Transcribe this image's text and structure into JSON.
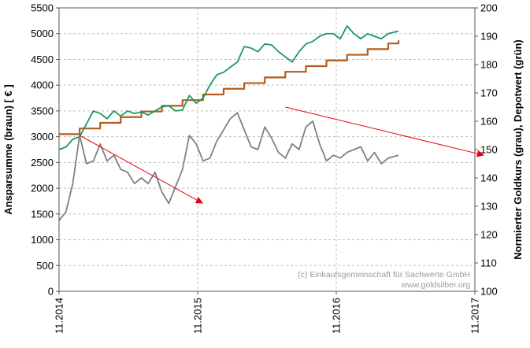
{
  "chart_data": {
    "type": "line",
    "x_ticks": [
      "11.2014",
      "11.2015",
      "11.2016",
      "11.2017"
    ],
    "xlim": [
      "2014-11",
      "2017-11"
    ],
    "y_left": {
      "label": "Ansparsumme (braun) [ € ]",
      "min": 0,
      "max": 5500,
      "ticks": [
        "0",
        "500",
        "1000",
        "1500",
        "2000",
        "2500",
        "3000",
        "3500",
        "4000",
        "4500",
        "5000",
        "5500"
      ]
    },
    "y_right": {
      "label": "Normierter Goldkurs (grau), Depotwert (grün)",
      "min": 100,
      "max": 200,
      "ticks": [
        "100",
        "110",
        "120",
        "130",
        "140",
        "150",
        "160",
        "170",
        "180",
        "190",
        "200"
      ]
    },
    "grid": true,
    "legend": "none",
    "series": [
      {
        "axis": "left",
        "color": "#b35c1e",
        "step": true,
        "values": [
          [
            0,
            3050
          ],
          [
            3,
            3160
          ],
          [
            6,
            3270
          ],
          [
            9,
            3380
          ],
          [
            12,
            3490
          ],
          [
            15,
            3600
          ],
          [
            18,
            3710
          ],
          [
            21,
            3820
          ],
          [
            24,
            3930
          ],
          [
            27,
            4040
          ],
          [
            30,
            4150
          ],
          [
            33,
            4260
          ],
          [
            36,
            4370
          ],
          [
            39,
            4480
          ],
          [
            42,
            4590
          ],
          [
            45,
            4700
          ],
          [
            48,
            4810
          ],
          [
            49.5,
            4870
          ]
        ]
      },
      {
        "axis": "left",
        "color": "#1a9b5e",
        "values": [
          [
            0,
            2750
          ],
          [
            1,
            2800
          ],
          [
            2,
            2950
          ],
          [
            3,
            3000
          ],
          [
            4,
            3250
          ],
          [
            5,
            3500
          ],
          [
            6,
            3450
          ],
          [
            7,
            3350
          ],
          [
            8,
            3500
          ],
          [
            9,
            3400
          ],
          [
            10,
            3500
          ],
          [
            11,
            3450
          ],
          [
            12,
            3480
          ],
          [
            13,
            3420
          ],
          [
            14,
            3500
          ],
          [
            15,
            3580
          ],
          [
            16,
            3600
          ],
          [
            17,
            3500
          ],
          [
            18,
            3520
          ],
          [
            19,
            3800
          ],
          [
            20,
            3650
          ],
          [
            21,
            3750
          ],
          [
            22,
            4000
          ],
          [
            23,
            4200
          ],
          [
            24,
            4250
          ],
          [
            25,
            4350
          ],
          [
            26,
            4450
          ],
          [
            27,
            4750
          ],
          [
            28,
            4720
          ],
          [
            29,
            4650
          ],
          [
            30,
            4800
          ],
          [
            31,
            4780
          ],
          [
            32,
            4650
          ],
          [
            33,
            4550
          ],
          [
            34,
            4450
          ],
          [
            35,
            4650
          ],
          [
            36,
            4800
          ],
          [
            37,
            4850
          ],
          [
            38,
            4950
          ],
          [
            39,
            5000
          ],
          [
            40,
            5000
          ],
          [
            41,
            4900
          ],
          [
            42,
            5150
          ],
          [
            43,
            5000
          ],
          [
            44,
            4900
          ],
          [
            45,
            5000
          ],
          [
            46,
            4950
          ],
          [
            47,
            4900
          ],
          [
            48,
            5000
          ],
          [
            49.5,
            5050
          ]
        ]
      },
      {
        "axis": "right",
        "color": "#808080",
        "values": [
          [
            0,
            125
          ],
          [
            1,
            128
          ],
          [
            2,
            138
          ],
          [
            3,
            155
          ],
          [
            4,
            145
          ],
          [
            5,
            146
          ],
          [
            6,
            152
          ],
          [
            7,
            146
          ],
          [
            8,
            148
          ],
          [
            9,
            143
          ],
          [
            10,
            142
          ],
          [
            11,
            138
          ],
          [
            12,
            140
          ],
          [
            13,
            138
          ],
          [
            14,
            142
          ],
          [
            15,
            135
          ],
          [
            16,
            131
          ],
          [
            17,
            137
          ],
          [
            18,
            143
          ],
          [
            19,
            155
          ],
          [
            20,
            152
          ],
          [
            21,
            146
          ],
          [
            22,
            147
          ],
          [
            23,
            153
          ],
          [
            24,
            157
          ],
          [
            25,
            161
          ],
          [
            26,
            163
          ],
          [
            27,
            157
          ],
          [
            28,
            151
          ],
          [
            29,
            150
          ],
          [
            30,
            158
          ],
          [
            31,
            154
          ],
          [
            32,
            149
          ],
          [
            33,
            147
          ],
          [
            34,
            152
          ],
          [
            35,
            150
          ],
          [
            36,
            158
          ],
          [
            37,
            160
          ],
          [
            38,
            152
          ],
          [
            39,
            146
          ],
          [
            40,
            148
          ],
          [
            41,
            147
          ],
          [
            42,
            149
          ],
          [
            43,
            150
          ],
          [
            44,
            151
          ],
          [
            45,
            146
          ],
          [
            46,
            149
          ],
          [
            47,
            145
          ],
          [
            48,
            147
          ],
          [
            49.5,
            148
          ]
        ]
      }
    ],
    "annotations": [
      {
        "type": "arrow",
        "color": "#e8000b",
        "axis": "right",
        "from": [
          3,
          155
        ],
        "to": [
          21,
          131
        ]
      },
      {
        "type": "arrow",
        "color": "#e8000b",
        "axis": "right",
        "from": [
          33,
          165
        ],
        "to": [
          62,
          148
        ]
      }
    ],
    "credit": [
      "(c) Einkaufsgemeinschaft für Sachwerte GmbH",
      "www.goldsilber.org"
    ]
  }
}
